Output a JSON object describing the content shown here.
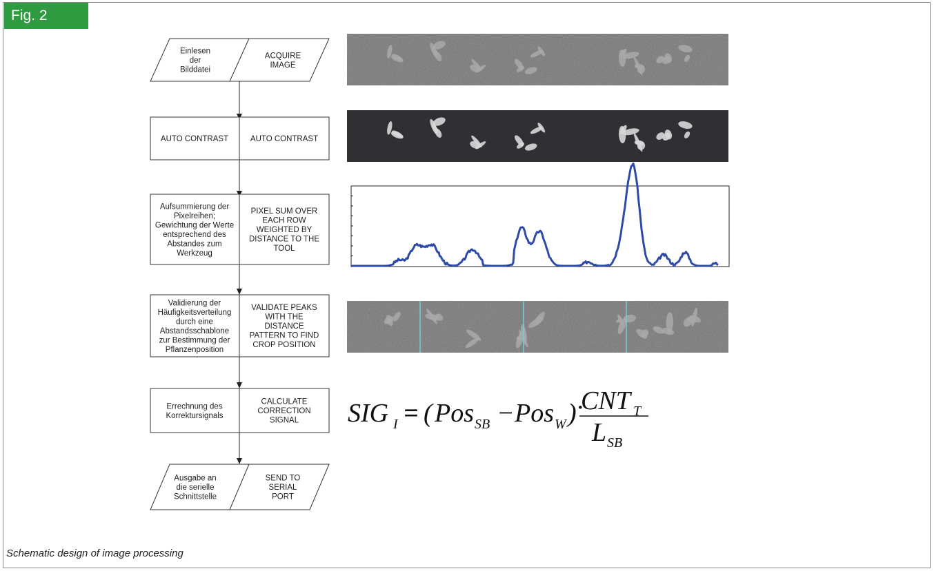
{
  "figure": {
    "tag": "Fig. 2",
    "caption": "Schematic design of image processing"
  },
  "flowchart": {
    "steps": [
      {
        "de": [
          "Einlesen",
          "der",
          "Bilddatei"
        ],
        "en": [
          "ACQUIRE",
          "IMAGE"
        ],
        "shape": "io"
      },
      {
        "de": [
          "AUTO CONTRAST"
        ],
        "en": [
          "AUTO CONTRAST"
        ],
        "shape": "process"
      },
      {
        "de": [
          "Aufsummierung der",
          "Pixelreihen;",
          "Gewichtung der Werte",
          "entsprechend des",
          "Abstandes zum",
          "Werkzeug"
        ],
        "en": [
          "PIXEL SUM OVER",
          "EACH ROW",
          "WEIGHTED BY",
          "DISTANCE TO THE",
          "TOOL"
        ],
        "shape": "process"
      },
      {
        "de": [
          "Validierung der",
          "Häufigkeitsverteilung",
          "durch eine",
          "Abstandsschablone",
          "zur Bestimmung der",
          "Pflanzenposition"
        ],
        "en": [
          "VALIDATE PEAKS",
          "WITH THE",
          "DISTANCE",
          "PATTERN TO FIND",
          "CROP POSITION"
        ],
        "shape": "process"
      },
      {
        "de": [
          "Errechnung des",
          "Korrektursignals"
        ],
        "en": [
          "CALCULATE",
          "CORRECTION",
          "SIGNAL"
        ],
        "shape": "process"
      },
      {
        "de": [
          "Ausgabe an",
          "die serielle",
          "Schnittstelle"
        ],
        "en": [
          "SEND TO",
          "SERIAL",
          "PORT"
        ],
        "shape": "io"
      }
    ]
  },
  "illustrations": {
    "acquired_image": "plant-row-image",
    "contrast_image": "plant-row-auto-contrast-image",
    "validated_image": "plant-row-with-crop-markers-image",
    "marker_color": "#6fd0d8",
    "curve_color": "#2d4aa8"
  },
  "formula": {
    "lhs": "SIG",
    "lhs_sub": "I",
    "eq": "=",
    "term1": "Pos",
    "term1_sub": "SB",
    "minus": "−",
    "term2": "Pos",
    "term2_sub": "W",
    "numerator": "CNT",
    "numerator_sub": "T",
    "denominator": "L",
    "denominator_sub": "SB"
  }
}
